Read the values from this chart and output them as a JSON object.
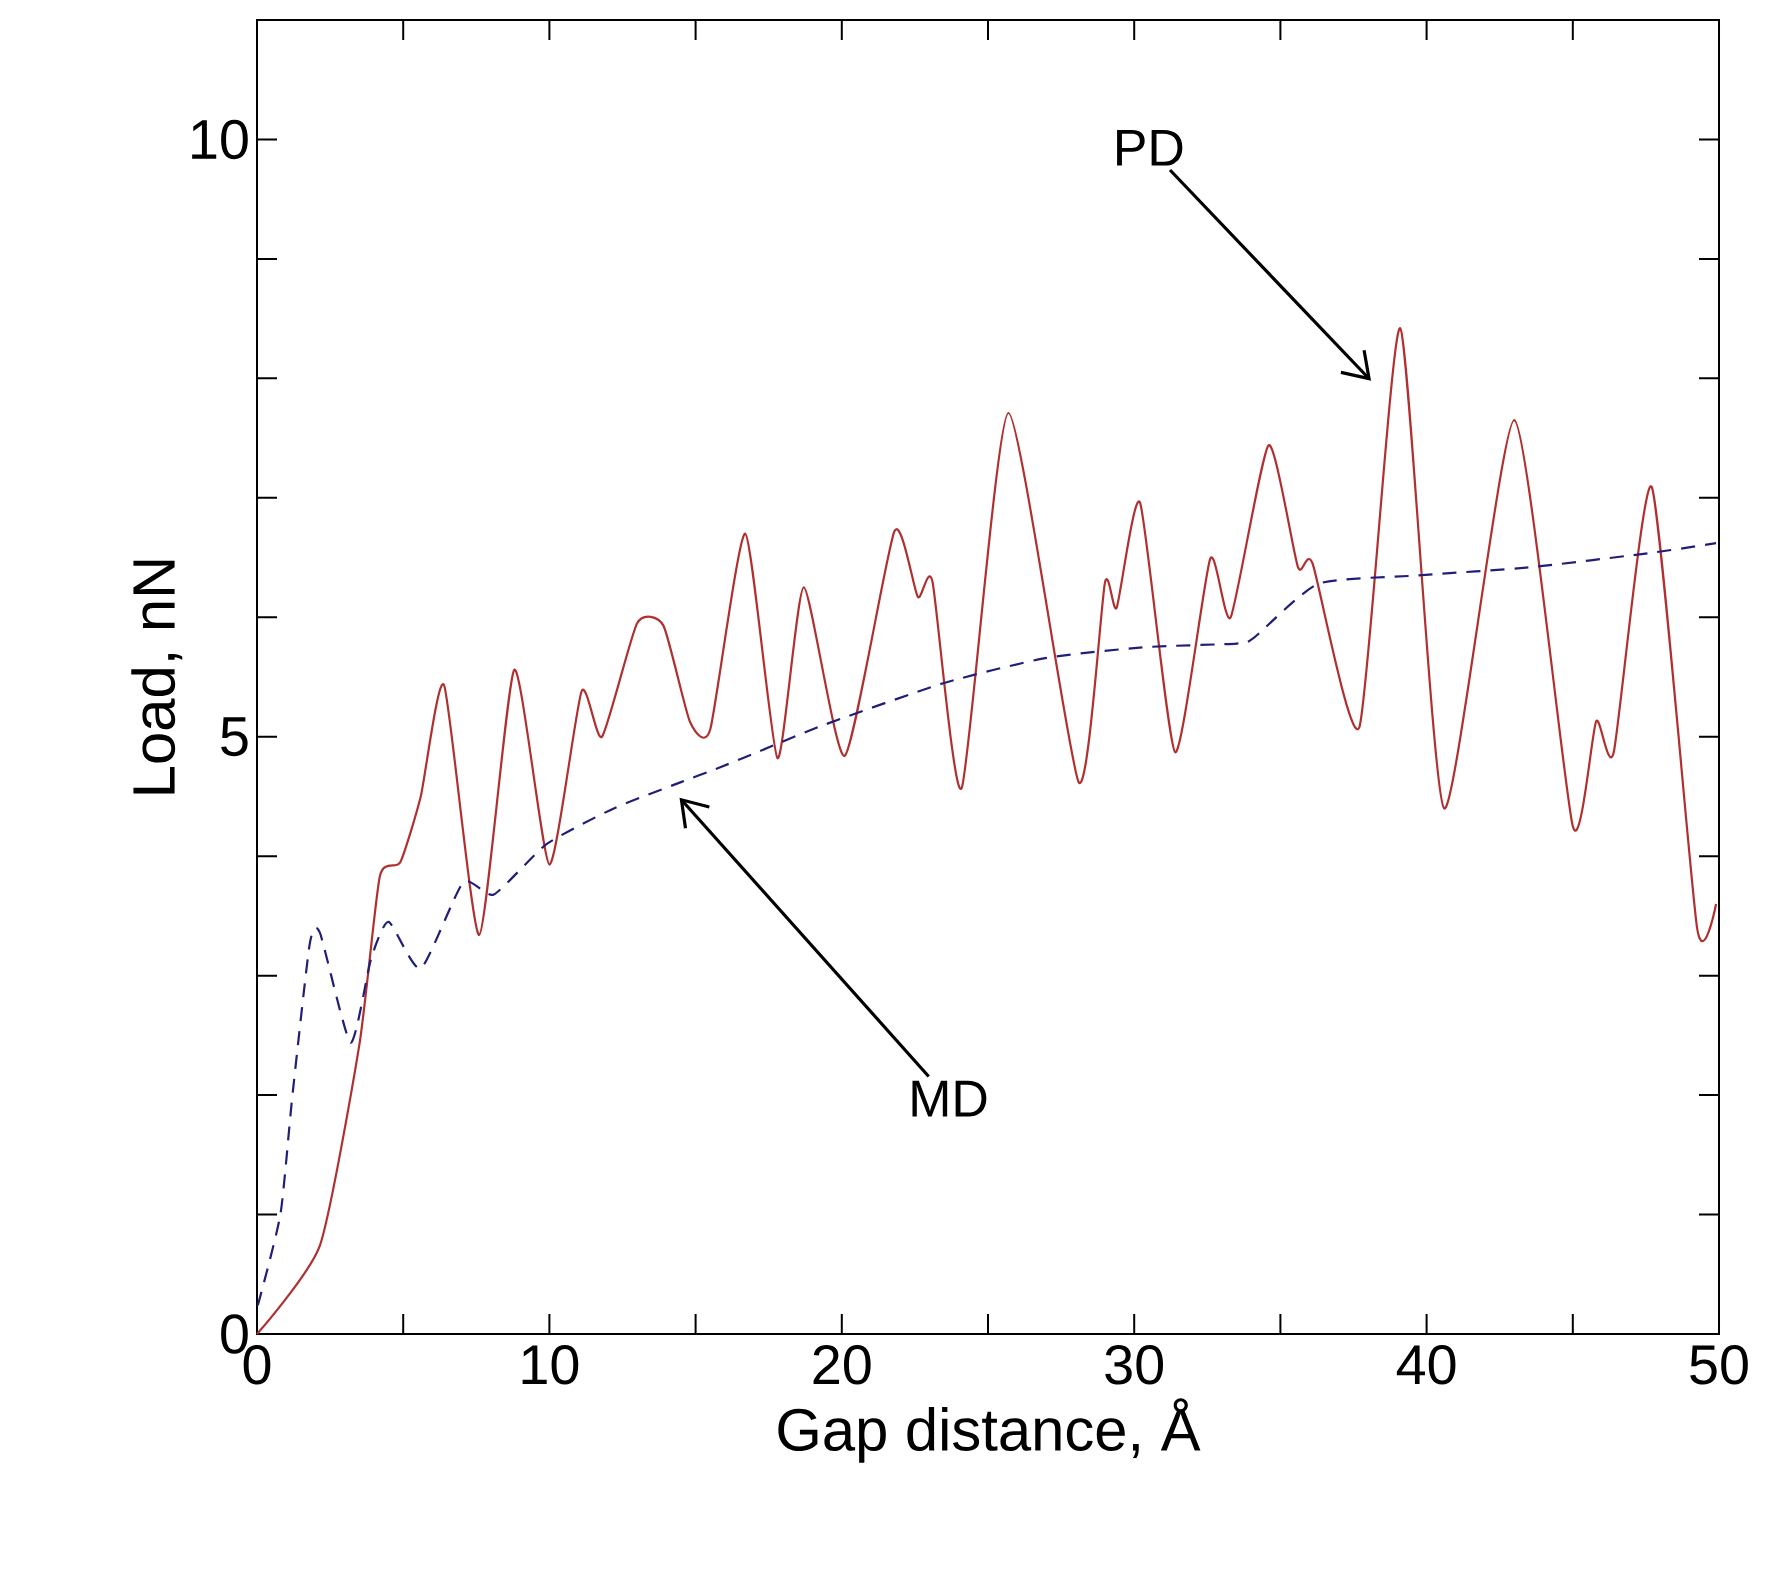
{
  "chart_data": {
    "type": "line",
    "xlabel": "Gap distance, Å",
    "ylabel": "Load, nN",
    "xlim": [
      0,
      50
    ],
    "ylim": [
      0,
      11
    ],
    "xticks": [
      0,
      {
        "value": 5,
        "label": null
      },
      10,
      {
        "value": 15,
        "label": null
      },
      20,
      {
        "value": 25,
        "label": null
      },
      30,
      {
        "value": 35,
        "label": null
      },
      40,
      {
        "value": 45,
        "label": null
      },
      50
    ],
    "yticks": [
      0,
      {
        "value": 1,
        "label": null
      },
      {
        "value": 2,
        "label": null
      },
      {
        "value": 3,
        "label": null
      },
      {
        "value": 4,
        "label": null
      },
      5,
      {
        "value": 6,
        "label": null
      },
      {
        "value": 7,
        "label": null
      },
      {
        "value": 8,
        "label": null
      },
      {
        "value": 9,
        "label": null
      },
      10
    ],
    "grid": false,
    "marker": "none",
    "series": [
      {
        "color": "#b03030",
        "line_style": "solid",
        "x": [
          0,
          2.15,
          3.5,
          4.2,
          4.9,
          5.6,
          6.4,
          7.6,
          8.8,
          10.0,
          11.1,
          11.8,
          13.0,
          13.9,
          14.8,
          15.5,
          16.7,
          17.8,
          18.7,
          20.1,
          21.8,
          22.6,
          23.1,
          24.1,
          25.7,
          28.1,
          29.0,
          29.4,
          30.2,
          31.4,
          32.6,
          33.3,
          34.6,
          35.6,
          36.1,
          37.7,
          39.1,
          40.6,
          43.0,
          45.0,
          45.8,
          46.4,
          47.7,
          49.25,
          49.9
        ],
        "values": [
          0,
          0.74,
          2.42,
          3.83,
          3.95,
          4.5,
          5.43,
          3.34,
          5.56,
          3.93,
          5.38,
          5.0,
          5.95,
          5.93,
          5.13,
          5.06,
          6.7,
          4.82,
          6.25,
          4.84,
          6.72,
          6.17,
          6.3,
          4.57,
          7.71,
          4.62,
          6.29,
          6.08,
          6.96,
          4.87,
          6.49,
          6.0,
          7.44,
          6.42,
          6.45,
          5.08,
          8.42,
          4.4,
          7.65,
          4.25,
          5.13,
          4.87,
          7.09,
          3.4,
          3.6
        ]
      },
      {
        "color": "#1f1f7a",
        "line_style": "dashed",
        "x": [
          0.03,
          0.8,
          1.2,
          1.8,
          2.15,
          3.2,
          3.9,
          4.5,
          5.6,
          7.05,
          8.1,
          9.9,
          12.2,
          14.5,
          15.8,
          17.2,
          19.4,
          23.5,
          27.0,
          30.4,
          33.5,
          34.1,
          36.3,
          39.7,
          43.6,
          47.7,
          49.9
        ],
        "values": [
          0.24,
          1.0,
          1.97,
          3.26,
          3.36,
          2.44,
          3.14,
          3.45,
          3.06,
          3.78,
          3.68,
          4.1,
          4.4,
          4.62,
          4.74,
          4.88,
          5.1,
          5.45,
          5.66,
          5.75,
          5.78,
          5.83,
          6.28,
          6.35,
          6.42,
          6.54,
          6.62
        ]
      }
    ],
    "annotations": [
      "PD",
      "MD"
    ]
  }
}
